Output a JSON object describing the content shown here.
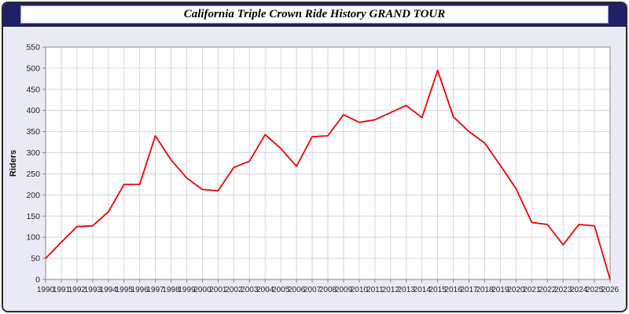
{
  "window": {
    "title": "California Triple Crown Ride History GRAND TOUR"
  },
  "colors": {
    "titlebar_bg": "#20206a",
    "body_bg": "#eaeaf6",
    "plot_bg": "#ffffff",
    "grid": "#d6d6d6",
    "axis": "#888888",
    "line": "#ee0000",
    "tick_text": "#222222"
  },
  "chart_data": {
    "type": "line",
    "title": "California Triple Crown Ride History GRAND TOUR",
    "xlabel": "",
    "ylabel": "Riders",
    "ylim": [
      0,
      550
    ],
    "ytick_step": 50,
    "grid": true,
    "legend": "none",
    "x": [
      1990,
      1991,
      1992,
      1993,
      1994,
      1995,
      1996,
      1997,
      1998,
      1999,
      2000,
      2001,
      2002,
      2003,
      2004,
      2005,
      2006,
      2007,
      2008,
      2009,
      2010,
      2011,
      2012,
      2013,
      2014,
      2015,
      2016,
      2017,
      2018,
      2019,
      2020,
      2021,
      2022,
      2023,
      2024,
      2025,
      2026
    ],
    "series": [
      {
        "name": "Riders",
        "color": "#ee0000",
        "values": [
          50,
          88,
          125,
          127,
          160,
          225,
          225,
          340,
          283,
          240,
          213,
          210,
          265,
          280,
          343,
          310,
          268,
          338,
          340,
          390,
          372,
          378,
          395,
          412,
          383,
          495,
          385,
          350,
          323,
          270,
          215,
          135,
          130,
          82,
          130,
          127,
          0
        ]
      }
    ]
  }
}
